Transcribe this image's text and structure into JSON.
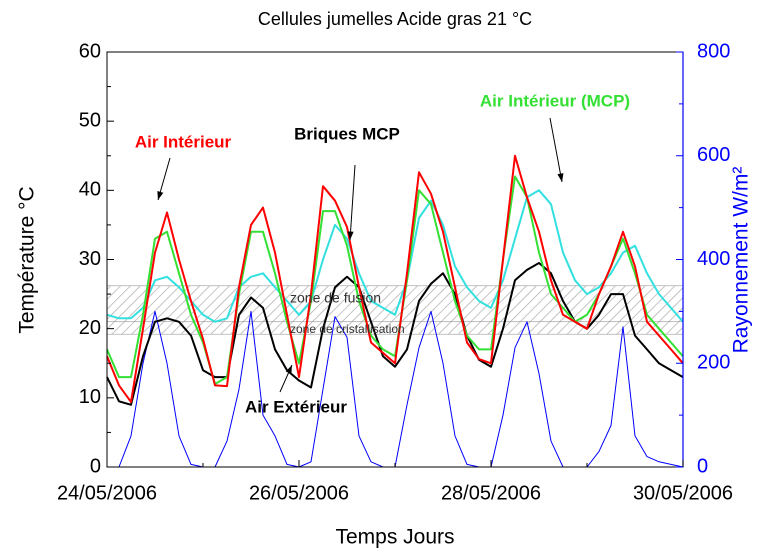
{
  "chart_data": {
    "type": "line",
    "title": "Cellules jumelles Acide gras 21 °C",
    "x_label": "Temps Jours",
    "y_label": "Température °C",
    "y2_label": "Rayonnement W/m²",
    "x": [
      "2006-05-24T00:00",
      "2006-05-24T03:00",
      "2006-05-24T06:00",
      "2006-05-24T09:00",
      "2006-05-24T12:00",
      "2006-05-24T15:00",
      "2006-05-24T18:00",
      "2006-05-24T21:00",
      "2006-05-25T00:00",
      "2006-05-25T03:00",
      "2006-05-25T06:00",
      "2006-05-25T09:00",
      "2006-05-25T12:00",
      "2006-05-25T15:00",
      "2006-05-25T18:00",
      "2006-05-25T21:00",
      "2006-05-26T00:00",
      "2006-05-26T03:00",
      "2006-05-26T06:00",
      "2006-05-26T09:00",
      "2006-05-26T12:00",
      "2006-05-26T15:00",
      "2006-05-26T18:00",
      "2006-05-26T21:00",
      "2006-05-27T00:00",
      "2006-05-27T03:00",
      "2006-05-27T06:00",
      "2006-05-27T09:00",
      "2006-05-27T12:00",
      "2006-05-27T15:00",
      "2006-05-27T18:00",
      "2006-05-27T21:00",
      "2006-05-28T00:00",
      "2006-05-28T03:00",
      "2006-05-28T06:00",
      "2006-05-28T09:00",
      "2006-05-28T12:00",
      "2006-05-28T15:00",
      "2006-05-28T18:00",
      "2006-05-28T21:00",
      "2006-05-29T00:00",
      "2006-05-29T03:00",
      "2006-05-29T06:00",
      "2006-05-29T09:00",
      "2006-05-29T12:00",
      "2006-05-29T15:00",
      "2006-05-29T18:00",
      "2006-05-29T21:00",
      "2006-05-30T00:00"
    ],
    "series": [
      {
        "name": "Air Intérieur",
        "color": "#ff0000",
        "values": [
          16,
          11.8,
          9.4,
          20,
          31,
          36.8,
          30,
          24,
          18.5,
          11.8,
          11.7,
          26,
          35,
          37.5,
          31,
          22,
          13,
          25,
          40.6,
          38.5,
          34.7,
          26,
          18,
          16.5,
          15,
          28,
          42.6,
          39.5,
          34,
          26,
          18,
          15.6,
          15,
          30,
          45,
          39,
          34,
          27,
          22,
          21,
          20,
          25,
          29,
          34,
          29,
          21,
          19,
          17,
          15
        ]
      },
      {
        "name": "Air Intérieur (MCP)",
        "color": "#33e033",
        "values": [
          17,
          13,
          13,
          22,
          33,
          34,
          28,
          22,
          18,
          12,
          13,
          25,
          34,
          34,
          28,
          21,
          15,
          24,
          37,
          37,
          32,
          24,
          19,
          17,
          16,
          27,
          40,
          38,
          31,
          24,
          19,
          17,
          17,
          30,
          42,
          39,
          31,
          25,
          23,
          21,
          22,
          25,
          29,
          33,
          28,
          22,
          20,
          18,
          16
        ]
      },
      {
        "name": "Briques MCP",
        "color": "#33e0e0",
        "values": [
          22,
          21.5,
          21.5,
          23,
          27,
          27.5,
          26,
          24,
          22,
          21,
          21.5,
          26,
          27.5,
          28,
          26,
          24,
          22,
          24,
          30,
          35,
          33,
          28,
          24,
          23,
          22,
          27,
          36,
          38.5,
          35,
          29,
          26,
          24,
          23,
          27,
          33,
          39,
          40,
          38,
          31,
          27,
          25,
          26,
          28,
          31,
          32,
          28,
          25,
          23,
          21
        ]
      },
      {
        "name": "Air Extérieur",
        "color": "#000000",
        "values": [
          13,
          9.5,
          9,
          16,
          21,
          21.5,
          21,
          19,
          14,
          13,
          13,
          22,
          24.5,
          23,
          17,
          14,
          12.5,
          11.5,
          20,
          26,
          27.5,
          26,
          21,
          16,
          14.5,
          17,
          24,
          26.5,
          28,
          25,
          19,
          15.5,
          14.5,
          20,
          27,
          28.5,
          29.5,
          28,
          24,
          21,
          20,
          22,
          25,
          25,
          19,
          17,
          15,
          14,
          13
        ]
      },
      {
        "color": "#0000ff",
        "axis": "y2",
        "values": [
          0,
          0,
          60,
          200,
          300,
          200,
          60,
          5,
          0,
          0,
          50,
          150,
          300,
          100,
          60,
          5,
          0,
          10,
          150,
          290,
          250,
          60,
          10,
          0,
          0,
          120,
          230,
          300,
          200,
          60,
          5,
          0,
          0,
          100,
          230,
          280,
          180,
          50,
          0,
          0,
          0,
          30,
          80,
          270,
          60,
          20,
          10,
          5,
          0
        ]
      }
    ],
    "xlim": [
      "2006-05-24T00:00",
      "2006-05-30T00:00"
    ],
    "xticks": [
      {
        "value": "2006-05-24T00:00",
        "label": "24/05/2006"
      },
      {
        "value": "2006-05-26T00:00",
        "label": "26/05/2006"
      },
      {
        "value": "2006-05-28T00:00",
        "label": "28/05/2006"
      },
      {
        "value": "2006-05-30T00:00",
        "label": "30/05/2006"
      }
    ],
    "ylim": [
      0,
      60
    ],
    "yticks": [
      0,
      10,
      20,
      30,
      40,
      50,
      60
    ],
    "y2lim": [
      0,
      800
    ],
    "y2ticks": [
      0,
      200,
      400,
      600,
      800
    ],
    "zones": [
      {
        "label": "zone de fusion",
        "range": [
          21,
          26.2
        ]
      },
      {
        "label": "zone de cristallisation",
        "range": [
          19.2,
          21
        ]
      }
    ],
    "legend": false
  }
}
